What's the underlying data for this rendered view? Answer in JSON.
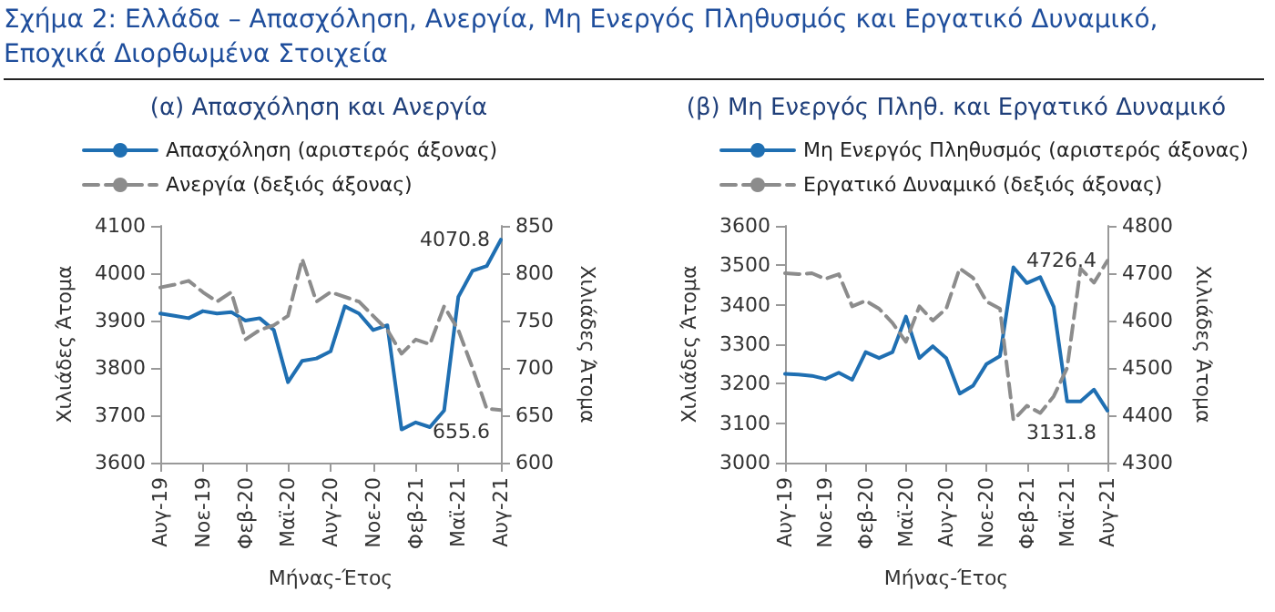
{
  "chart_data": [
    {
      "type": "line",
      "title": "Σχήμα 2: Ελλάδα – Απασχόληση, Ανεργία, Μη Ενεργός Πληθυσμός και Εργατικό Δυναμικό, Εποχικά Διορθωμένα Στοιχεία",
      "subtitle": "(α) Απασχόληση και Ανεργία",
      "xlabel": "Μήνας-Έτος",
      "ylabel": "Χιλιάδες Άτομα",
      "y2label": "Χιλιάδες Άτομα",
      "categories": [
        "Αυγ-19",
        null,
        null,
        "Νοε-19",
        null,
        null,
        "Φεβ-20",
        null,
        null,
        "Μαϊ-20",
        null,
        null,
        "Αυγ-20",
        null,
        null,
        "Νοε-20",
        null,
        null,
        "Φεβ-21",
        null,
        null,
        "Μαϊ-21",
        null,
        null,
        "Αυγ-21"
      ],
      "series": [
        {
          "name": "Απασχόληση (αριστερός άξονας)",
          "color": "#1f6fb2",
          "line_style": "solid",
          "values": [
            3915,
            3910,
            3905,
            3920,
            3915,
            3918,
            3900,
            3905,
            3880,
            3770,
            3815,
            3820,
            3835,
            3930,
            3915,
            3880,
            3890,
            3670,
            3685,
            3675,
            3710,
            3950,
            4005,
            4015,
            4070.8
          ],
          "value_labels": [
            null,
            null,
            null,
            null,
            null,
            null,
            null,
            null,
            null,
            null,
            null,
            null,
            null,
            null,
            null,
            null,
            null,
            null,
            null,
            null,
            null,
            null,
            null,
            null,
            "4070.8"
          ]
        },
        {
          "name": "Ανεργία (δεξιός άξονας)",
          "color": "#8c8c8c",
          "line_style": "dashed",
          "axis": "y2",
          "values": [
            785,
            788,
            792,
            780,
            770,
            780,
            730,
            740,
            745,
            755,
            815,
            770,
            780,
            775,
            770,
            755,
            740,
            715,
            730,
            725,
            765,
            740,
            700,
            657,
            655.6
          ],
          "value_labels": [
            null,
            null,
            null,
            null,
            null,
            null,
            null,
            null,
            null,
            null,
            null,
            null,
            null,
            null,
            null,
            null,
            null,
            null,
            null,
            null,
            null,
            null,
            null,
            null,
            "655.6"
          ]
        }
      ],
      "ylim": [
        3600,
        4100
      ],
      "yticks": [
        3600,
        3700,
        3800,
        3900,
        4000,
        4100
      ],
      "y2lim": [
        600,
        850
      ],
      "y2ticks": [
        600,
        650,
        700,
        750,
        800,
        850
      ],
      "legend": "top",
      "grid": false,
      "marker": "none"
    },
    {
      "type": "line",
      "subtitle": "(β) Μη Ενεργός Πληθ. και Εργατικό Δυναμικό",
      "xlabel": "Μήνας-Έτος",
      "ylabel": "Χιλιάδες Άτομα",
      "y2label": "Χιλιάδες Άτομα",
      "categories": [
        "Αυγ-19",
        null,
        null,
        "Νοε-19",
        null,
        null,
        "Φεβ-20",
        null,
        null,
        "Μαϊ-20",
        null,
        null,
        "Αυγ-20",
        null,
        null,
        "Νοε-20",
        null,
        null,
        "Φεβ-21",
        null,
        null,
        "Μαϊ-21",
        null,
        null,
        "Αυγ-21"
      ],
      "series": [
        {
          "name": "Μη Ενεργός Πληθυσμός (αριστερός άξονας)",
          "color": "#1f6fb2",
          "line_style": "solid",
          "values": [
            3225,
            3223,
            3220,
            3212,
            3228,
            3210,
            3280,
            3265,
            3280,
            3370,
            3265,
            3295,
            3265,
            3175,
            3195,
            3250,
            3270,
            3495,
            3455,
            3470,
            3395,
            3155,
            3155,
            3185,
            3131.8
          ],
          "value_labels": [
            null,
            null,
            null,
            null,
            null,
            null,
            null,
            null,
            null,
            null,
            null,
            null,
            null,
            null,
            null,
            null,
            null,
            null,
            null,
            null,
            null,
            null,
            null,
            null,
            "3131.8"
          ]
        },
        {
          "name": "Εργατικό Δυναμικό (δεξιός άξονας)",
          "color": "#8c8c8c",
          "line_style": "dashed",
          "axis": "y2",
          "values": [
            4700,
            4698,
            4700,
            4688,
            4698,
            4630,
            4642,
            4625,
            4595,
            4555,
            4630,
            4600,
            4625,
            4710,
            4690,
            4640,
            4625,
            4390,
            4420,
            4405,
            4440,
            4500,
            4710,
            4680,
            4726.4
          ],
          "value_labels": [
            null,
            null,
            null,
            null,
            null,
            null,
            null,
            null,
            null,
            null,
            null,
            null,
            null,
            null,
            null,
            null,
            null,
            null,
            null,
            null,
            null,
            null,
            null,
            null,
            "4726.4"
          ]
        }
      ],
      "ylim": [
        3000,
        3600
      ],
      "yticks": [
        3000,
        3100,
        3200,
        3300,
        3400,
        3500,
        3600
      ],
      "y2lim": [
        4300,
        4800
      ],
      "y2ticks": [
        4300,
        4400,
        4500,
        4600,
        4700,
        4800
      ],
      "legend": "top",
      "grid": false,
      "marker": "none"
    }
  ]
}
